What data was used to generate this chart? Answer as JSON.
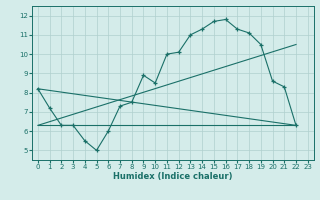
{
  "xlabel": "Humidex (Indice chaleur)",
  "background_color": "#d4ecea",
  "grid_color": "#b0d0ce",
  "line_color": "#1a7068",
  "xlim": [
    -0.5,
    23.5
  ],
  "ylim": [
    4.5,
    12.5
  ],
  "xticks": [
    0,
    1,
    2,
    3,
    4,
    5,
    6,
    7,
    8,
    9,
    10,
    11,
    12,
    13,
    14,
    15,
    16,
    17,
    18,
    19,
    20,
    21,
    22,
    23
  ],
  "yticks": [
    5,
    6,
    7,
    8,
    9,
    10,
    11,
    12
  ],
  "series1_x": [
    0,
    1,
    2,
    3,
    4,
    5,
    6,
    7,
    8,
    9,
    10,
    11,
    12,
    13,
    14,
    15,
    16,
    17,
    18,
    19,
    20,
    21,
    22
  ],
  "series1_y": [
    8.2,
    7.2,
    6.3,
    6.3,
    5.5,
    5.0,
    6.0,
    7.3,
    7.5,
    8.9,
    8.5,
    10.0,
    10.1,
    11.0,
    11.3,
    11.7,
    11.8,
    11.3,
    11.1,
    10.5,
    8.6,
    8.3,
    6.3
  ],
  "line1_x": [
    0,
    22
  ],
  "line1_y": [
    8.2,
    6.3
  ],
  "line2_x": [
    0,
    22
  ],
  "line2_y": [
    6.3,
    6.3
  ],
  "line3_x": [
    0,
    22
  ],
  "line3_y": [
    6.3,
    10.5
  ]
}
